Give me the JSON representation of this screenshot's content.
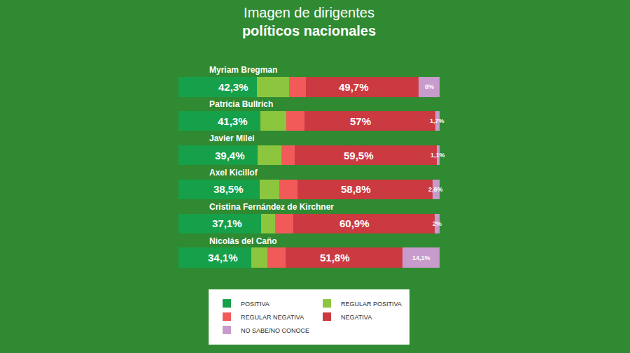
{
  "chart_data": {
    "type": "bar",
    "orientation": "horizontal",
    "stacked": true,
    "title": [
      "Imagen de dirigentes",
      "políticos nacionales"
    ],
    "categories": [
      "Myriam Bregman",
      "Patricia Bullrich",
      "Javier Milei",
      "Axel Kicillof",
      "Cristina Fernández de Kirchner",
      "Nicolás del Caño"
    ],
    "series": [
      {
        "name": "POSITIVA",
        "color": "#16a04a",
        "values": [
          30.0,
          31.3,
          30.4,
          31.0,
          31.6,
          28.0
        ]
      },
      {
        "name": "REGULAR POSITIVA",
        "color": "#8cc63f",
        "values": [
          12.3,
          10.0,
          9.0,
          7.5,
          5.5,
          6.1
        ]
      },
      {
        "name": "REGULAR NEGATIVA",
        "color": "#f25a5a",
        "values": [
          6.5,
          7.0,
          5.0,
          7.0,
          7.0,
          7.0
        ]
      },
      {
        "name": "NEGATIVA",
        "color": "#cb3a40",
        "values": [
          43.2,
          50.0,
          54.5,
          51.8,
          53.9,
          44.8
        ]
      },
      {
        "name": "NO SABE/NO CONOCE",
        "color": "#c79bcb",
        "values": [
          8,
          1.7,
          1.1,
          2.6,
          2,
          14.1
        ]
      }
    ],
    "groups": [
      {
        "series": [
          "POSITIVA",
          "REGULAR POSITIVA"
        ],
        "values": [
          42.3,
          41.3,
          39.4,
          38.5,
          37.1,
          34.1
        ],
        "value_labels": [
          "42,3%",
          "41,3%",
          "39,4%",
          "38,5%",
          "37,1%",
          "34,1%"
        ]
      },
      {
        "series": [
          "REGULAR NEGATIVA",
          "NEGATIVA"
        ],
        "values": [
          49.7,
          57,
          59.5,
          58.8,
          60.9,
          51.8
        ],
        "value_labels": [
          "49,7%",
          "57%",
          "59,5%",
          "58,8%",
          "60,9%",
          "51,8%"
        ]
      },
      {
        "series": [
          "NO SABE/NO CONOCE"
        ],
        "values": [
          8,
          1.7,
          1.1,
          2.6,
          2,
          14.1
        ],
        "value_labels": [
          "8%",
          "1,7%",
          "1,1%",
          "2,6%",
          "2%",
          "14,1%"
        ]
      }
    ],
    "xlim": [
      0,
      100
    ],
    "tick_labels": false,
    "grid": false,
    "data_labels": true,
    "legend": "bottom"
  }
}
